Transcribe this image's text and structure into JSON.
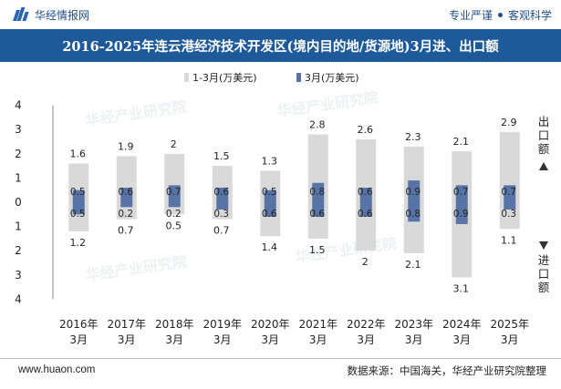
{
  "header": {
    "brand": "华经情报网",
    "tagline_left": "专业严谨",
    "tagline_right": "客观科学"
  },
  "title": "2016-2025年连云港经济技术开发区(境内目的地/货源地)3月进、出口额",
  "footer": {
    "website": "www.huaon.com",
    "source": "数据来源：中国海关，华经产业研究院整理"
  },
  "watermark": "华经产业研究院",
  "colors": {
    "title_band": "#1e5a9a",
    "ytd_bar": "#d9d9d9",
    "month_bar": "#5874a6",
    "arrow": "#333333"
  },
  "chart_data": {
    "type": "bar",
    "title": "2016-2025年连云港经济技术开发区(境内目的地/货源地)3月进、出口额",
    "categories": [
      "2016年\n3月",
      "2017年\n3月",
      "2018年\n3月",
      "2019年\n3月",
      "2020年\n3月",
      "2021年\n3月",
      "2022年\n3月",
      "2023年\n3月",
      "2024年\n3月",
      "2025年\n3月"
    ],
    "category_lines": [
      [
        "2016年",
        "3月"
      ],
      [
        "2017年",
        "3月"
      ],
      [
        "2018年",
        "3月"
      ],
      [
        "2019年",
        "3月"
      ],
      [
        "2020年",
        "3月"
      ],
      [
        "2021年",
        "3月"
      ],
      [
        "2022年",
        "3月"
      ],
      [
        "2023年",
        "3月"
      ],
      [
        "2024年",
        "3月"
      ],
      [
        "2025年",
        "3月"
      ]
    ],
    "series": [
      {
        "name": "1-3月(万美元)",
        "export": [
          1.6,
          1.9,
          2,
          1.5,
          1.3,
          2.8,
          2.6,
          2.3,
          2.1,
          2.9
        ],
        "import": [
          1.2,
          0.7,
          0.5,
          0.7,
          1.4,
          1.5,
          2,
          2.1,
          3.1,
          1.1
        ]
      },
      {
        "name": "3月(万美元)",
        "export": [
          0.5,
          0.6,
          0.7,
          0.6,
          0.5,
          0.8,
          0.6,
          0.9,
          0.7,
          0.7
        ],
        "import": [
          0.5,
          0.2,
          0.2,
          0.3,
          0.6,
          0.6,
          0.6,
          0.8,
          0.9,
          0.3
        ]
      }
    ],
    "y_ticks": [
      "4",
      "3",
      "2",
      "1",
      "0",
      "1",
      "2",
      "3",
      "4"
    ],
    "ylim": [
      -4,
      4
    ],
    "export_label": "出口额",
    "import_label": "进口额",
    "legend_position": "top-center",
    "grid": false
  }
}
